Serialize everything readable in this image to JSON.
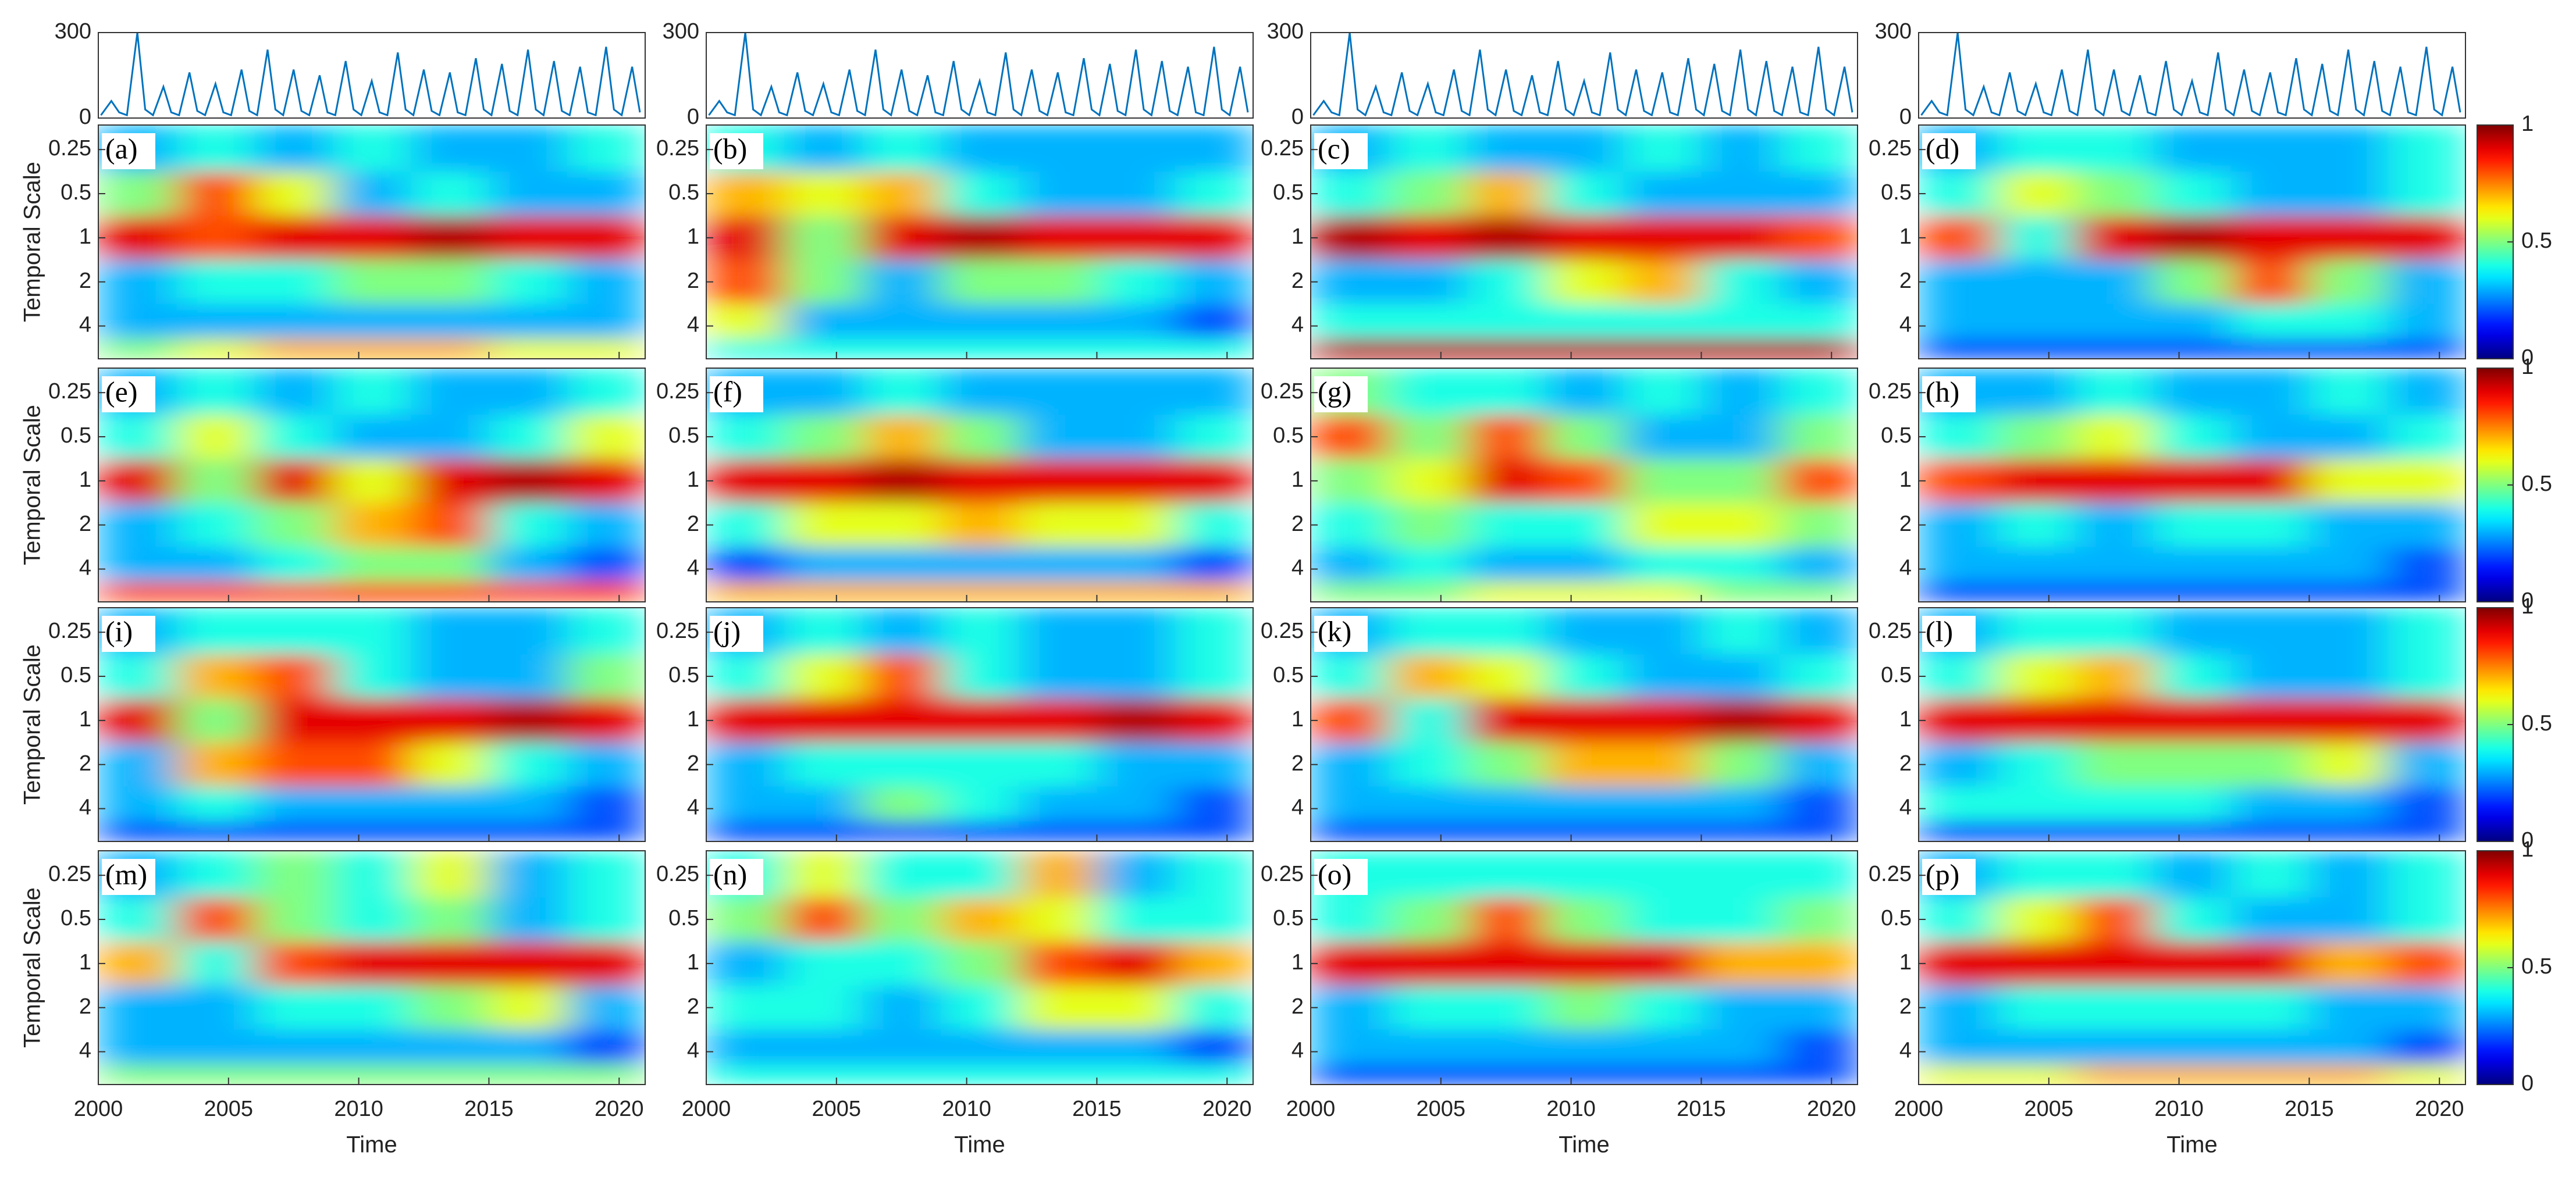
{
  "chart_data": {
    "type": "wavelet_grid",
    "series_plot": {
      "type": "line",
      "color": "#0072bd",
      "ylim": [
        0,
        300
      ],
      "yticks": [
        0,
        300
      ],
      "x": [
        2000.1,
        2000.5,
        2000.8,
        2001.1,
        2001.5,
        2001.8,
        2002.1,
        2002.5,
        2002.8,
        2003.1,
        2003.5,
        2003.8,
        2004.1,
        2004.5,
        2004.8,
        2005.1,
        2005.5,
        2005.8,
        2006.1,
        2006.5,
        2006.8,
        2007.1,
        2007.5,
        2007.8,
        2008.1,
        2008.5,
        2008.8,
        2009.1,
        2009.5,
        2009.8,
        2010.1,
        2010.5,
        2010.8,
        2011.1,
        2011.5,
        2011.8,
        2012.1,
        2012.5,
        2012.8,
        2013.1,
        2013.5,
        2013.8,
        2014.1,
        2014.5,
        2014.8,
        2015.1,
        2015.5,
        2015.8,
        2016.1,
        2016.5,
        2016.8,
        2017.1,
        2017.5,
        2017.8,
        2018.1,
        2018.5,
        2018.8,
        2019.1,
        2019.5,
        2019.8,
        2020.1,
        2020.5,
        2020.8
      ],
      "values": [
        10,
        60,
        20,
        10,
        300,
        30,
        10,
        110,
        20,
        10,
        160,
        25,
        10,
        120,
        20,
        10,
        170,
        25,
        10,
        240,
        30,
        10,
        170,
        25,
        10,
        150,
        20,
        10,
        200,
        30,
        10,
        130,
        20,
        10,
        230,
        30,
        10,
        170,
        25,
        10,
        160,
        20,
        10,
        210,
        30,
        10,
        190,
        25,
        10,
        240,
        30,
        10,
        200,
        25,
        10,
        180,
        20,
        10,
        250,
        30,
        10,
        180,
        20
      ]
    },
    "xlim": [
      2000,
      2021
    ],
    "xticks": [
      2000,
      2005,
      2010,
      2015,
      2020
    ],
    "xlabel": "Time",
    "ylabel": "Temporal Scale",
    "ylim": [
      0.17,
      6.7
    ],
    "yticks": [
      0.25,
      0.5,
      1,
      2,
      4
    ],
    "log_y": true,
    "y_reversed": true,
    "cell_x": [
      2001.5,
      2004.5,
      2007.5,
      2010.5,
      2013.5,
      2016.5,
      2019.5
    ],
    "cell_y": [
      0.25,
      0.5,
      1,
      2,
      4,
      6
    ],
    "colorbar": {
      "colormap": "jet",
      "lim": [
        0,
        1
      ],
      "ticks": [
        0,
        0.5,
        1
      ]
    },
    "panels": [
      {
        "label": "(a)",
        "z": [
          [
            0.3,
            0.4,
            0.3,
            0.4,
            0.3,
            0.3,
            0.4
          ],
          [
            0.5,
            0.8,
            0.6,
            0.3,
            0.4,
            0.3,
            0.3
          ],
          [
            0.9,
            0.8,
            0.9,
            0.9,
            0.95,
            0.9,
            0.9
          ],
          [
            0.3,
            0.4,
            0.4,
            0.5,
            0.5,
            0.4,
            0.3
          ],
          [
            0.3,
            0.3,
            0.3,
            0.3,
            0.3,
            0.3,
            0.3
          ],
          [
            0.5,
            0.6,
            0.7,
            0.7,
            0.7,
            0.6,
            0.6
          ]
        ]
      },
      {
        "label": "(b)",
        "z": [
          [
            0.4,
            0.3,
            0.4,
            0.3,
            0.3,
            0.3,
            0.3
          ],
          [
            0.7,
            0.6,
            0.7,
            0.4,
            0.3,
            0.3,
            0.4
          ],
          [
            0.9,
            0.5,
            0.9,
            0.95,
            0.9,
            0.9,
            0.9
          ],
          [
            0.8,
            0.5,
            0.3,
            0.5,
            0.5,
            0.4,
            0.3
          ],
          [
            0.6,
            0.3,
            0.3,
            0.3,
            0.3,
            0.3,
            0.2
          ],
          [
            0.4,
            0.4,
            0.4,
            0.4,
            0.4,
            0.4,
            0.4
          ]
        ]
      },
      {
        "label": "(c)",
        "z": [
          [
            0.3,
            0.4,
            0.3,
            0.3,
            0.4,
            0.3,
            0.4
          ],
          [
            0.4,
            0.5,
            0.7,
            0.4,
            0.3,
            0.3,
            0.3
          ],
          [
            0.95,
            0.9,
            0.95,
            0.9,
            0.9,
            0.9,
            0.8
          ],
          [
            0.3,
            0.3,
            0.4,
            0.6,
            0.7,
            0.4,
            0.3
          ],
          [
            0.4,
            0.4,
            0.4,
            0.4,
            0.4,
            0.4,
            0.4
          ],
          [
            0.95,
            0.95,
            0.95,
            0.95,
            0.95,
            0.95,
            0.95
          ]
        ]
      },
      {
        "label": "(d)",
        "z": [
          [
            0.3,
            0.4,
            0.4,
            0.3,
            0.3,
            0.3,
            0.4
          ],
          [
            0.4,
            0.6,
            0.5,
            0.4,
            0.3,
            0.3,
            0.4
          ],
          [
            0.8,
            0.4,
            0.9,
            0.95,
            0.9,
            0.9,
            0.9
          ],
          [
            0.3,
            0.3,
            0.3,
            0.5,
            0.8,
            0.5,
            0.3
          ],
          [
            0.3,
            0.3,
            0.3,
            0.3,
            0.4,
            0.4,
            0.3
          ],
          [
            0.2,
            0.2,
            0.2,
            0.2,
            0.2,
            0.2,
            0.2
          ]
        ]
      },
      {
        "label": "(e)",
        "z": [
          [
            0.3,
            0.4,
            0.3,
            0.4,
            0.3,
            0.3,
            0.4
          ],
          [
            0.4,
            0.6,
            0.4,
            0.3,
            0.3,
            0.4,
            0.6
          ],
          [
            0.9,
            0.5,
            0.9,
            0.6,
            0.9,
            0.95,
            0.9
          ],
          [
            0.3,
            0.4,
            0.5,
            0.7,
            0.8,
            0.4,
            0.3
          ],
          [
            0.3,
            0.3,
            0.4,
            0.5,
            0.5,
            0.3,
            0.2
          ],
          [
            0.8,
            0.8,
            0.8,
            0.8,
            0.8,
            0.8,
            0.8
          ]
        ]
      },
      {
        "label": "(f)",
        "z": [
          [
            0.3,
            0.3,
            0.4,
            0.3,
            0.3,
            0.3,
            0.3
          ],
          [
            0.4,
            0.5,
            0.7,
            0.5,
            0.3,
            0.3,
            0.4
          ],
          [
            0.9,
            0.9,
            0.95,
            0.9,
            0.9,
            0.9,
            0.9
          ],
          [
            0.4,
            0.6,
            0.6,
            0.7,
            0.6,
            0.6,
            0.4
          ],
          [
            0.2,
            0.3,
            0.3,
            0.3,
            0.3,
            0.3,
            0.2
          ],
          [
            0.7,
            0.7,
            0.7,
            0.7,
            0.7,
            0.7,
            0.7
          ]
        ]
      },
      {
        "label": "(g)",
        "z": [
          [
            0.5,
            0.4,
            0.4,
            0.3,
            0.4,
            0.3,
            0.4
          ],
          [
            0.8,
            0.5,
            0.8,
            0.5,
            0.3,
            0.3,
            0.5
          ],
          [
            0.5,
            0.6,
            0.9,
            0.8,
            0.5,
            0.5,
            0.8
          ],
          [
            0.4,
            0.5,
            0.4,
            0.4,
            0.6,
            0.6,
            0.5
          ],
          [
            0.3,
            0.4,
            0.3,
            0.3,
            0.4,
            0.4,
            0.3
          ],
          [
            0.5,
            0.5,
            0.6,
            0.6,
            0.6,
            0.5,
            0.5
          ]
        ]
      },
      {
        "label": "(h)",
        "z": [
          [
            0.3,
            0.3,
            0.4,
            0.3,
            0.3,
            0.4,
            0.3
          ],
          [
            0.4,
            0.5,
            0.6,
            0.4,
            0.3,
            0.3,
            0.4
          ],
          [
            0.8,
            0.9,
            0.9,
            0.9,
            0.9,
            0.6,
            0.6
          ],
          [
            0.3,
            0.4,
            0.3,
            0.4,
            0.4,
            0.3,
            0.3
          ],
          [
            0.3,
            0.3,
            0.3,
            0.3,
            0.3,
            0.3,
            0.2
          ],
          [
            0.2,
            0.2,
            0.2,
            0.2,
            0.2,
            0.2,
            0.2
          ]
        ]
      },
      {
        "label": "(i)",
        "z": [
          [
            0.3,
            0.4,
            0.4,
            0.4,
            0.3,
            0.3,
            0.4
          ],
          [
            0.4,
            0.7,
            0.8,
            0.4,
            0.3,
            0.3,
            0.5
          ],
          [
            0.9,
            0.5,
            0.9,
            0.9,
            0.9,
            0.95,
            0.9
          ],
          [
            0.3,
            0.7,
            0.8,
            0.8,
            0.6,
            0.4,
            0.3
          ],
          [
            0.3,
            0.4,
            0.3,
            0.3,
            0.3,
            0.3,
            0.2
          ],
          [
            0.2,
            0.2,
            0.2,
            0.2,
            0.2,
            0.2,
            0.2
          ]
        ]
      },
      {
        "label": "(j)",
        "z": [
          [
            0.3,
            0.4,
            0.3,
            0.4,
            0.3,
            0.3,
            0.4
          ],
          [
            0.4,
            0.6,
            0.8,
            0.4,
            0.3,
            0.3,
            0.4
          ],
          [
            0.9,
            0.9,
            0.9,
            0.9,
            0.9,
            0.95,
            0.9
          ],
          [
            0.3,
            0.4,
            0.4,
            0.4,
            0.4,
            0.3,
            0.3
          ],
          [
            0.3,
            0.3,
            0.5,
            0.4,
            0.3,
            0.3,
            0.2
          ],
          [
            0.2,
            0.2,
            0.2,
            0.2,
            0.2,
            0.2,
            0.2
          ]
        ]
      },
      {
        "label": "(k)",
        "z": [
          [
            0.3,
            0.4,
            0.4,
            0.3,
            0.3,
            0.4,
            0.3
          ],
          [
            0.4,
            0.7,
            0.6,
            0.4,
            0.3,
            0.3,
            0.4
          ],
          [
            0.8,
            0.4,
            0.9,
            0.9,
            0.9,
            0.95,
            0.9
          ],
          [
            0.3,
            0.4,
            0.5,
            0.7,
            0.7,
            0.5,
            0.3
          ],
          [
            0.3,
            0.3,
            0.3,
            0.3,
            0.3,
            0.3,
            0.2
          ],
          [
            0.2,
            0.2,
            0.2,
            0.2,
            0.2,
            0.2,
            0.2
          ]
        ]
      },
      {
        "label": "(l)",
        "z": [
          [
            0.3,
            0.4,
            0.4,
            0.3,
            0.3,
            0.3,
            0.4
          ],
          [
            0.4,
            0.6,
            0.7,
            0.4,
            0.3,
            0.3,
            0.4
          ],
          [
            0.9,
            0.9,
            0.9,
            0.9,
            0.9,
            0.9,
            0.9
          ],
          [
            0.3,
            0.4,
            0.5,
            0.5,
            0.5,
            0.6,
            0.3
          ],
          [
            0.4,
            0.4,
            0.4,
            0.4,
            0.3,
            0.3,
            0.2
          ],
          [
            0.2,
            0.2,
            0.2,
            0.2,
            0.2,
            0.2,
            0.2
          ]
        ]
      },
      {
        "label": "(m)",
        "z": [
          [
            0.3,
            0.4,
            0.5,
            0.4,
            0.6,
            0.3,
            0.4
          ],
          [
            0.4,
            0.8,
            0.5,
            0.4,
            0.5,
            0.3,
            0.4
          ],
          [
            0.7,
            0.4,
            0.8,
            0.9,
            0.9,
            0.9,
            0.9
          ],
          [
            0.3,
            0.3,
            0.4,
            0.4,
            0.5,
            0.6,
            0.3
          ],
          [
            0.3,
            0.3,
            0.3,
            0.3,
            0.3,
            0.3,
            0.2
          ],
          [
            0.5,
            0.5,
            0.5,
            0.5,
            0.5,
            0.5,
            0.5
          ]
        ]
      },
      {
        "label": "(n)",
        "z": [
          [
            0.4,
            0.6,
            0.4,
            0.4,
            0.7,
            0.3,
            0.4
          ],
          [
            0.5,
            0.8,
            0.5,
            0.7,
            0.6,
            0.4,
            0.4
          ],
          [
            0.3,
            0.4,
            0.4,
            0.5,
            0.8,
            0.9,
            0.7
          ],
          [
            0.4,
            0.4,
            0.3,
            0.4,
            0.6,
            0.6,
            0.4
          ],
          [
            0.3,
            0.3,
            0.3,
            0.3,
            0.3,
            0.3,
            0.2
          ],
          [
            0.4,
            0.4,
            0.4,
            0.4,
            0.4,
            0.4,
            0.4
          ]
        ]
      },
      {
        "label": "(o)",
        "z": [
          [
            0.4,
            0.4,
            0.4,
            0.4,
            0.4,
            0.4,
            0.4
          ],
          [
            0.4,
            0.5,
            0.8,
            0.5,
            0.4,
            0.4,
            0.5
          ],
          [
            0.9,
            0.9,
            0.9,
            0.9,
            0.9,
            0.7,
            0.7
          ],
          [
            0.3,
            0.4,
            0.4,
            0.5,
            0.4,
            0.3,
            0.3
          ],
          [
            0.3,
            0.3,
            0.3,
            0.3,
            0.3,
            0.3,
            0.2
          ],
          [
            0.2,
            0.2,
            0.2,
            0.2,
            0.2,
            0.2,
            0.2
          ]
        ]
      },
      {
        "label": "(p)",
        "z": [
          [
            0.3,
            0.4,
            0.4,
            0.3,
            0.4,
            0.3,
            0.4
          ],
          [
            0.4,
            0.6,
            0.8,
            0.4,
            0.3,
            0.3,
            0.4
          ],
          [
            0.9,
            0.9,
            0.9,
            0.9,
            0.9,
            0.7,
            0.8
          ],
          [
            0.3,
            0.4,
            0.4,
            0.4,
            0.4,
            0.3,
            0.3
          ],
          [
            0.3,
            0.3,
            0.3,
            0.3,
            0.3,
            0.3,
            0.2
          ],
          [
            0.6,
            0.6,
            0.7,
            0.7,
            0.7,
            0.7,
            0.6
          ]
        ]
      }
    ]
  }
}
